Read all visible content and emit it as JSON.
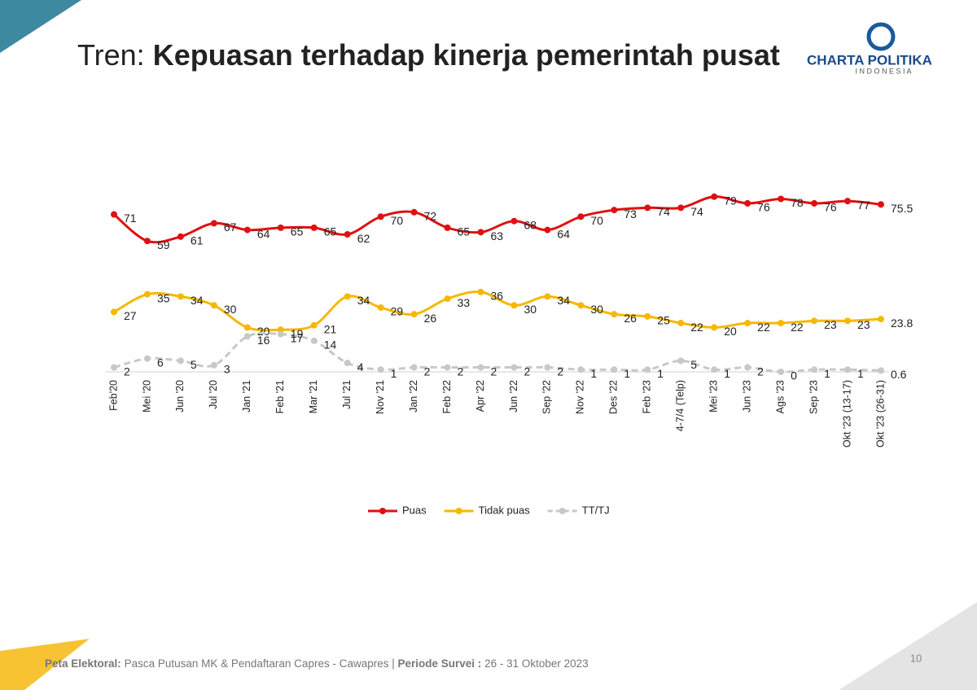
{
  "slide": {
    "title_prefix": "Tren:",
    "title": "Kepuasan terhadap kinerja pemerintah pusat",
    "logo": "CHARTA POLITIKA",
    "logo_sub": "I N D O N E S I A",
    "footer_label": "Peta Elektoral:",
    "footer_text": "Pasca Putusan MK & Pendaftaran Capres - Cawapres",
    "footer_period_label": "Periode Survei :",
    "footer_period": "26 - 31 Oktober 2023",
    "page_number": "10"
  },
  "chart_data": {
    "type": "line",
    "categories": [
      "Feb'20",
      "Mei '20",
      "Jun '20",
      "Jul '20",
      "Jan '21",
      "Feb '21",
      "Mar '21",
      "Jul '21",
      "Nov '21",
      "Jan '22",
      "Feb '22",
      "Apr '22",
      "Jun '22",
      "Sep '22",
      "Nov '22",
      "Des '22",
      "Feb '23",
      "4-7/4 (Telp)",
      "Mei '23",
      "Jun '23",
      "Ags '23",
      "Sep '23",
      "Okt '23 (13-17)",
      "Okt '23 (26-31)"
    ],
    "ylim": [
      0,
      80
    ],
    "legend": "bottom",
    "series": [
      {
        "name": "Puas",
        "color": "#e01010",
        "dashed": false,
        "values": [
          71,
          59,
          61,
          67,
          64,
          65,
          65,
          62,
          70,
          72,
          65,
          63,
          68,
          64,
          70,
          73,
          74,
          74,
          79,
          76,
          78,
          76,
          77,
          75.5
        ]
      },
      {
        "name": "Tidak puas",
        "color": "#f5b800",
        "dashed": false,
        "values": [
          27,
          35,
          34,
          30,
          20,
          19,
          21,
          34,
          29,
          26,
          33,
          36,
          30,
          34,
          30,
          26,
          25,
          22,
          20,
          22,
          22,
          23,
          23,
          23.8
        ]
      },
      {
        "name": "TT/TJ",
        "color": "#c8c8c8",
        "dashed": true,
        "values": [
          2,
          6,
          5,
          3,
          16,
          17,
          14,
          4,
          1,
          2,
          2,
          2,
          2,
          2,
          1,
          1,
          1,
          5,
          1,
          2,
          0,
          1,
          1,
          0.6
        ]
      }
    ]
  }
}
